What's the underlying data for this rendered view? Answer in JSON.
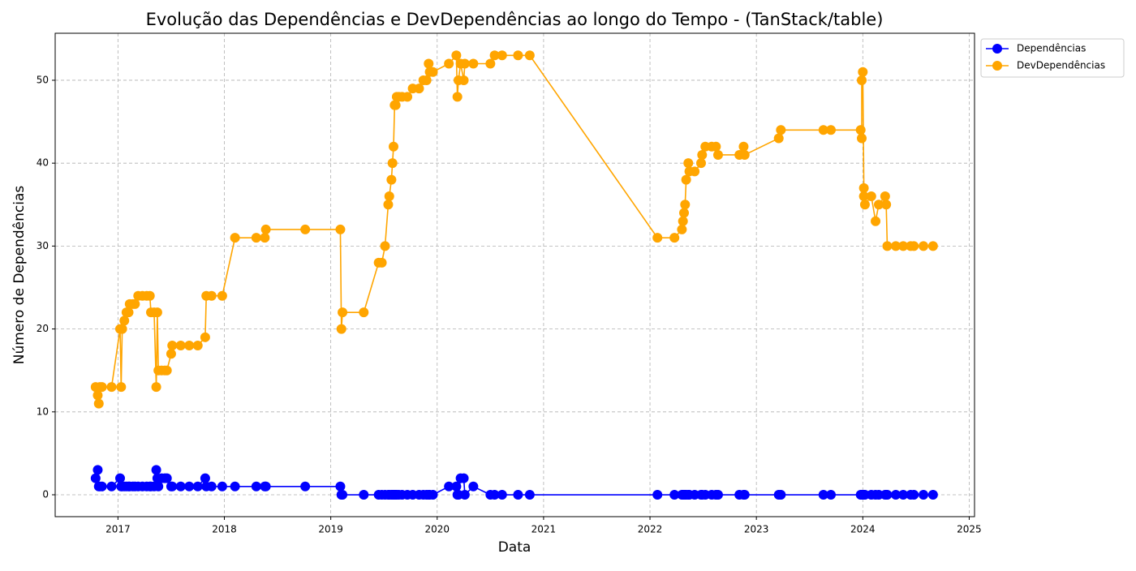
{
  "chart_data": {
    "type": "line",
    "title": "Evolução das Dependências e DevDependências ao longo do Tempo - (TanStack/table)",
    "x_label": "Data",
    "y_label": "Número de Dependências",
    "x": [
      2016.79,
      2016.81,
      2016.82,
      2016.83,
      2016.85,
      2016.94,
      2017.02,
      2017.03,
      2017.04,
      2017.06,
      2017.08,
      2017.1,
      2017.11,
      2017.14,
      2017.16,
      2017.19,
      2017.23,
      2017.27,
      2017.3,
      2017.31,
      2017.34,
      2017.36,
      2017.37,
      2017.38,
      2017.41,
      2017.44,
      2017.46,
      2017.5,
      2017.51,
      2017.59,
      2017.67,
      2017.75,
      2017.82,
      2017.83,
      2017.88,
      2017.98,
      2018.1,
      2018.3,
      2018.38,
      2018.39,
      2018.76,
      2019.09,
      2019.1,
      2019.11,
      2019.31,
      2019.45,
      2019.48,
      2019.51,
      2019.54,
      2019.55,
      2019.57,
      2019.58,
      2019.59,
      2019.6,
      2019.61,
      2019.62,
      2019.64,
      2019.67,
      2019.72,
      2019.77,
      2019.83,
      2019.87,
      2019.9,
      2019.92,
      2019.93,
      2019.96,
      2020.11,
      2020.18,
      2020.19,
      2020.2,
      2020.22,
      2020.25,
      2020.26,
      2020.34,
      2020.5,
      2020.54,
      2020.61,
      2020.76,
      2020.87,
      2022.07,
      2022.23,
      2022.3,
      2022.31,
      2022.32,
      2022.33,
      2022.34,
      2022.36,
      2022.37,
      2022.42,
      2022.48,
      2022.49,
      2022.52,
      2022.58,
      2022.62,
      2022.64,
      2022.84,
      2022.88,
      2022.89,
      2023.21,
      2023.23,
      2023.63,
      2023.7,
      2023.98,
      2023.99,
      2023.99,
      2024.0,
      2024.01,
      2024.01,
      2024.02,
      2024.08,
      2024.12,
      2024.15,
      2024.21,
      2024.22,
      2024.23,
      2024.31,
      2024.38,
      2024.45,
      2024.48,
      2024.57,
      2024.66
    ],
    "series": [
      {
        "name": "Dependências",
        "color": "#0000ff",
        "values": [
          2,
          3,
          1,
          1,
          1,
          1,
          2,
          1,
          1,
          1,
          1,
          1,
          1,
          1,
          1,
          1,
          1,
          1,
          1,
          1,
          1,
          3,
          2,
          1,
          2,
          2,
          2,
          1,
          1,
          1,
          1,
          1,
          2,
          1,
          1,
          1,
          1,
          1,
          1,
          1,
          1,
          1,
          0,
          0,
          0,
          0,
          0,
          0,
          0,
          0,
          0,
          0,
          0,
          0,
          0,
          0,
          0,
          0,
          0,
          0,
          0,
          0,
          0,
          0,
          0,
          0,
          1,
          1,
          0,
          0,
          2,
          2,
          0,
          1,
          0,
          0,
          0,
          0,
          0,
          0,
          0,
          0,
          0,
          0,
          0,
          0,
          0,
          0,
          0,
          0,
          0,
          0,
          0,
          0,
          0,
          0,
          0,
          0,
          0,
          0,
          0,
          0,
          0,
          0,
          0,
          0,
          0,
          0,
          0,
          0,
          0,
          0,
          0,
          0,
          0,
          0,
          0,
          0,
          0,
          0,
          0
        ]
      },
      {
        "name": "DevDependências",
        "color": "#ffa500",
        "values": [
          13,
          12,
          11,
          13,
          13,
          13,
          20,
          13,
          20,
          21,
          22,
          22,
          23,
          23,
          23,
          24,
          24,
          24,
          24,
          22,
          22,
          13,
          22,
          15,
          15,
          15,
          15,
          17,
          18,
          18,
          18,
          18,
          19,
          24,
          24,
          24,
          31,
          31,
          31,
          32,
          32,
          32,
          20,
          22,
          22,
          28,
          28,
          30,
          35,
          36,
          38,
          40,
          42,
          47,
          47,
          48,
          48,
          48,
          48,
          49,
          49,
          50,
          50,
          52,
          51,
          51,
          52,
          53,
          48,
          50,
          52,
          50,
          52,
          52,
          52,
          53,
          53,
          53,
          53,
          31,
          31,
          32,
          33,
          34,
          35,
          38,
          40,
          39,
          39,
          40,
          41,
          42,
          42,
          42,
          41,
          41,
          42,
          41,
          43,
          44,
          44,
          44,
          44,
          43,
          50,
          51,
          37,
          36,
          35,
          36,
          33,
          35,
          36,
          35,
          30,
          30,
          30,
          30,
          30,
          30,
          30
        ]
      }
    ],
    "xlim": [
      2016.41,
      2025.05
    ],
    "ylim": [
      -2.64,
      55.67
    ],
    "xticks": [
      2017,
      2018,
      2019,
      2020,
      2021,
      2022,
      2023,
      2024,
      2025
    ],
    "yticks": [
      0,
      10,
      20,
      30,
      40,
      50
    ],
    "grid": true,
    "legend": "right"
  }
}
